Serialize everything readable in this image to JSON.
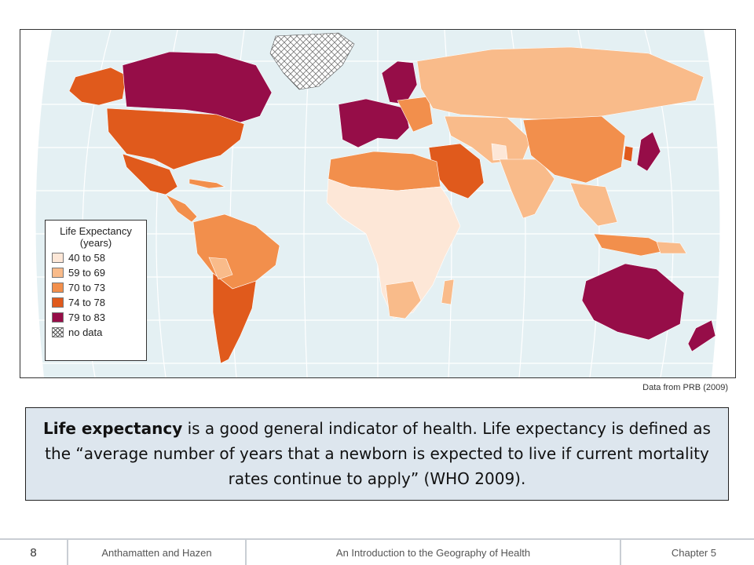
{
  "map": {
    "colors": {
      "ocean": "#e4f0f3",
      "graticule": "#ffffff",
      "c40_58": "#fde7d7",
      "c59_69": "#f9bb8a",
      "c70_73": "#f28f4c",
      "c74_78": "#e05a1c",
      "c79_83": "#960d48",
      "nodata": "#ffffff"
    },
    "legend": {
      "title_line1": "Life Expectancy",
      "title_line2": "(years)",
      "items": [
        {
          "label": "40 to 58",
          "color": "#fde7d7"
        },
        {
          "label": "59 to 69",
          "color": "#f9bb8a"
        },
        {
          "label": "70 to 73",
          "color": "#f28f4c"
        },
        {
          "label": "74 to 78",
          "color": "#e05a1c"
        },
        {
          "label": "79 to 83",
          "color": "#960d48"
        },
        {
          "label": "no data",
          "color": "hatch"
        }
      ]
    }
  },
  "source": "Data from PRB (2009)",
  "body_text": {
    "bold": "Life expectancy",
    "rest": " is a good general indicator of health. Life expectancy is defined as the “average number of years that a newborn is expected to live if current mortality rates continue to apply” (WHO 2009)."
  },
  "footer": {
    "page_number": "8",
    "authors": "Anthamatten and Hazen",
    "book_title": "An Introduction to the Geography of Health",
    "chapter": "Chapter 5"
  }
}
